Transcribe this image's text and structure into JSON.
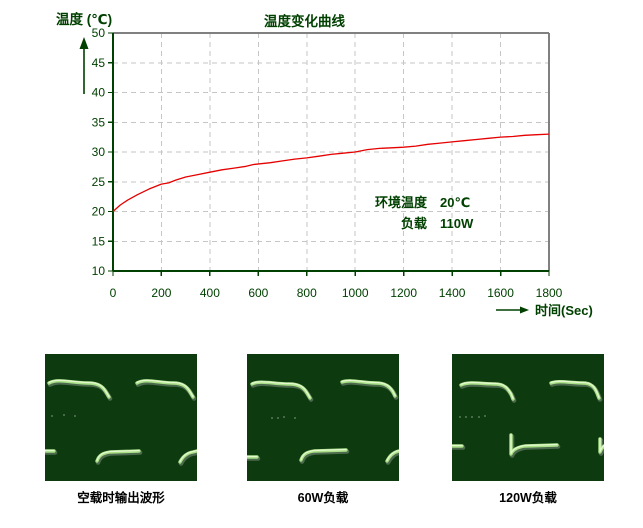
{
  "chart": {
    "title": "温度变化曲线",
    "y_axis_title": "温度 (℃)",
    "x_axis_title": "时间(Sec)",
    "annotation": {
      "line1_label": "环境温度",
      "line1_value": "20℃",
      "line2_label": "负载",
      "line2_value": "110W"
    },
    "colors": {
      "text_green": "#004000",
      "curve_red": "#e60000",
      "grid_gray": "#c6c6c6",
      "border_gray": "#808080",
      "scope_background": "#0e3a10",
      "scope_trace": "#a9e088"
    }
  },
  "chart_data": {
    "type": "line",
    "title": "温度变化曲线",
    "xlabel": "时间(Sec)",
    "ylabel": "温度 (℃)",
    "xlim": [
      0,
      1800
    ],
    "ylim": [
      10,
      50
    ],
    "xticks": [
      0,
      200,
      400,
      600,
      800,
      1000,
      1200,
      1400,
      1600,
      1800
    ],
    "yticks": [
      10,
      15,
      20,
      25,
      30,
      35,
      40,
      45,
      50
    ],
    "grid": true,
    "legend": "none",
    "annotations": [
      "环境温度 20℃",
      "负载 110W"
    ],
    "series": [
      {
        "name": "温度",
        "color": "#e60000",
        "points": [
          [
            0,
            20.0
          ],
          [
            30,
            21.1
          ],
          [
            60,
            21.9
          ],
          [
            100,
            22.8
          ],
          [
            150,
            23.8
          ],
          [
            200,
            24.6
          ],
          [
            230,
            24.8
          ],
          [
            260,
            25.3
          ],
          [
            300,
            25.8
          ],
          [
            350,
            26.2
          ],
          [
            400,
            26.6
          ],
          [
            450,
            27.0
          ],
          [
            500,
            27.3
          ],
          [
            550,
            27.6
          ],
          [
            580,
            27.9
          ],
          [
            650,
            28.2
          ],
          [
            700,
            28.5
          ],
          [
            750,
            28.8
          ],
          [
            800,
            29.0
          ],
          [
            850,
            29.3
          ],
          [
            900,
            29.6
          ],
          [
            950,
            29.8
          ],
          [
            1000,
            30.0
          ],
          [
            1050,
            30.4
          ],
          [
            1100,
            30.6
          ],
          [
            1150,
            30.7
          ],
          [
            1200,
            30.8
          ],
          [
            1250,
            31.0
          ],
          [
            1300,
            31.3
          ],
          [
            1350,
            31.5
          ],
          [
            1400,
            31.7
          ],
          [
            1450,
            31.9
          ],
          [
            1500,
            32.1
          ],
          [
            1550,
            32.3
          ],
          [
            1600,
            32.5
          ],
          [
            1650,
            32.6
          ],
          [
            1700,
            32.8
          ],
          [
            1750,
            32.9
          ],
          [
            1800,
            33.0
          ]
        ]
      }
    ]
  },
  "scopes": [
    {
      "label": "空载时输出波形"
    },
    {
      "label": "60W负载"
    },
    {
      "label": "120W负载"
    }
  ]
}
